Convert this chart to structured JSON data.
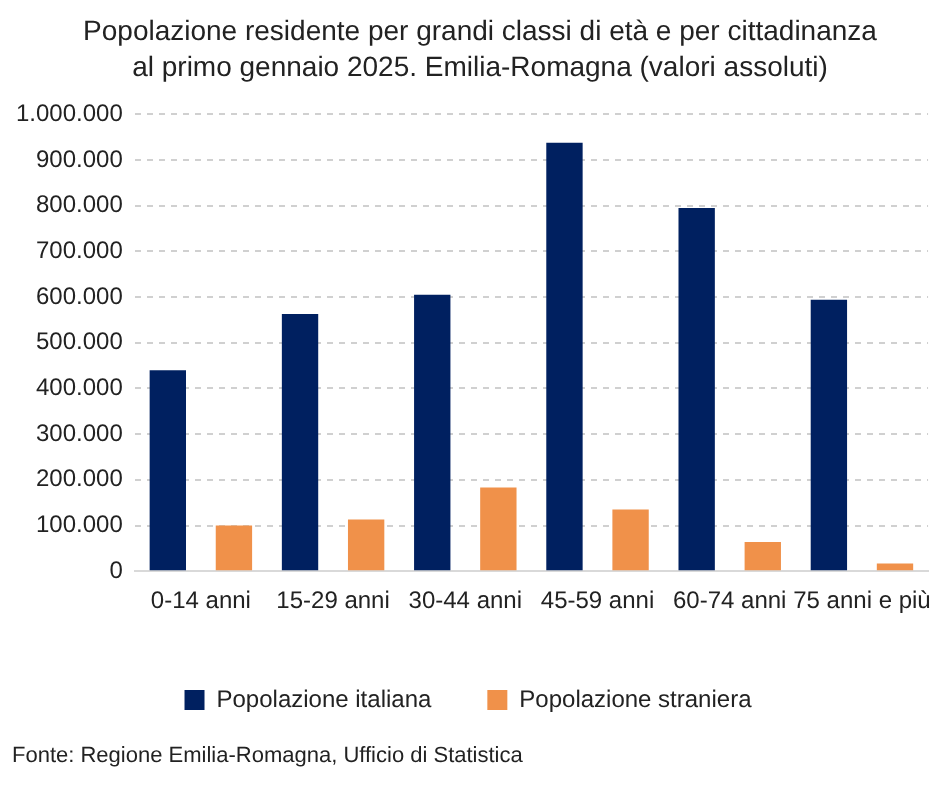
{
  "chart_data": {
    "type": "bar",
    "title": "Popolazione residente per grandi classi di età e per cittadinanza al primo gennaio 2025. Emilia-Romagna (valori assoluti)",
    "categories": [
      "0-14 anni",
      "15-29 anni",
      "30-44 anni",
      "45-59 anni",
      "60-74 anni",
      "75 anni e più"
    ],
    "series": [
      {
        "name": "Popolazione italiana",
        "color": "#002060",
        "values": [
          440000,
          563000,
          605000,
          938000,
          795000,
          594000
        ]
      },
      {
        "name": "Popolazione straniera",
        "color": "#f0914a",
        "values": [
          100000,
          113000,
          183000,
          135000,
          64000,
          17000
        ]
      }
    ],
    "ylim": [
      0,
      1000000
    ],
    "yticks": [
      {
        "value": 0,
        "label": "0"
      },
      {
        "value": 100000,
        "label": "100.000"
      },
      {
        "value": 200000,
        "label": "200.000"
      },
      {
        "value": 300000,
        "label": "300.000"
      },
      {
        "value": 400000,
        "label": "400.000"
      },
      {
        "value": 500000,
        "label": "500.000"
      },
      {
        "value": 600000,
        "label": "600.000"
      },
      {
        "value": 700000,
        "label": "700.000"
      },
      {
        "value": 800000,
        "label": "800.000"
      },
      {
        "value": 900000,
        "label": "900.000"
      },
      {
        "value": 1000000,
        "label": "1.000.000"
      }
    ],
    "grid": "y",
    "legend": "bottom",
    "annotations": [
      "Fonte: Regione Emilia-Romagna, Ufficio di Statistica"
    ]
  }
}
